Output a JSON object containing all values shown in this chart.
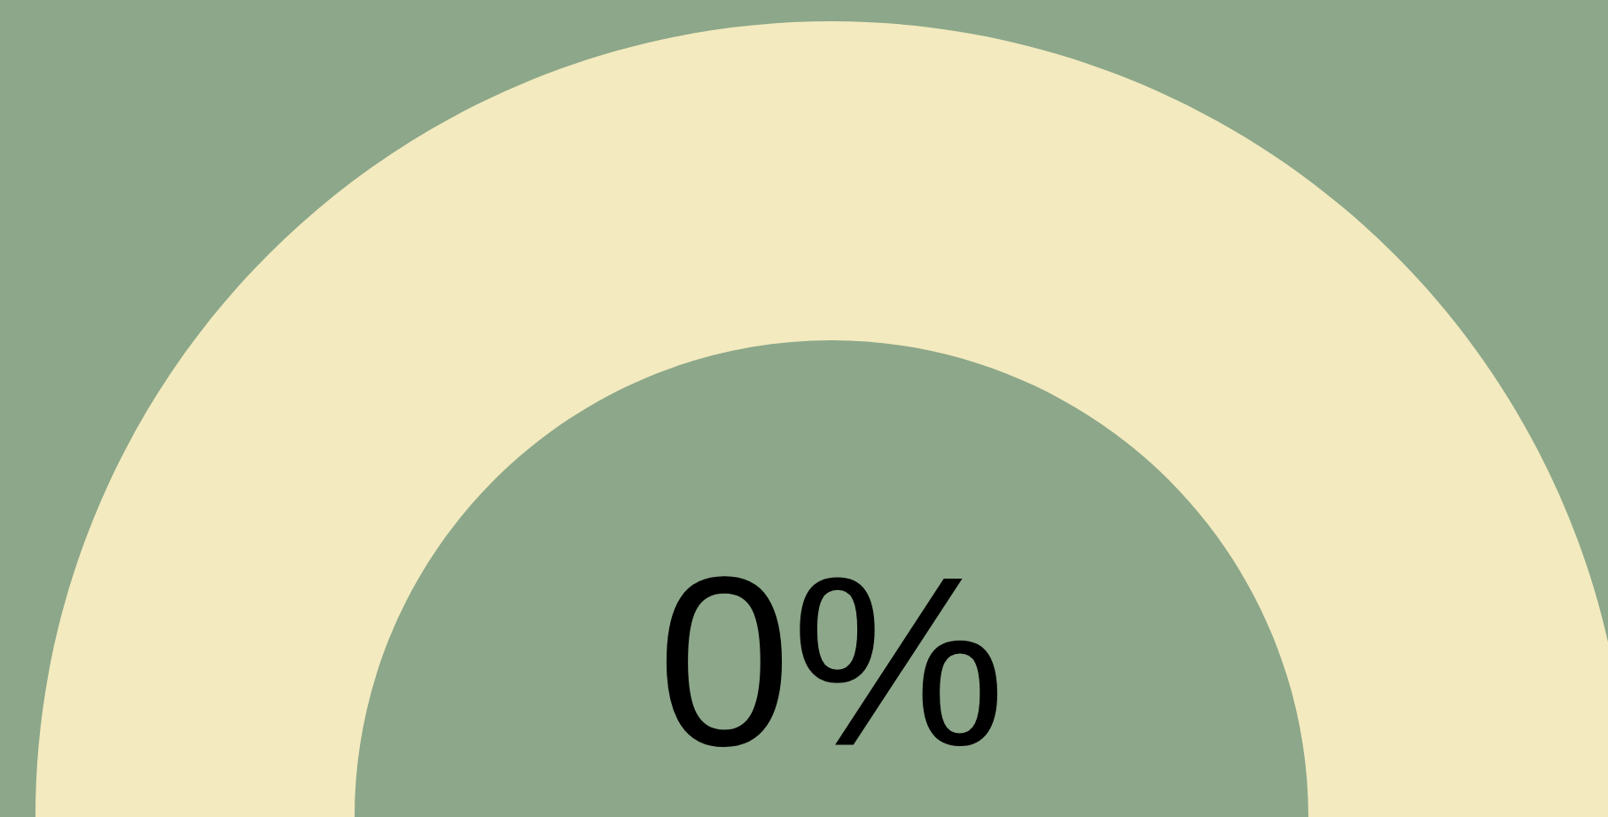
{
  "chart_data": {
    "type": "pie",
    "categories": [
      null,
      null
    ],
    "values": [
      0,
      100
    ],
    "colors": [
      "#6b8f68",
      "#f3eabf"
    ],
    "annotations": [
      "0%"
    ]
  }
}
